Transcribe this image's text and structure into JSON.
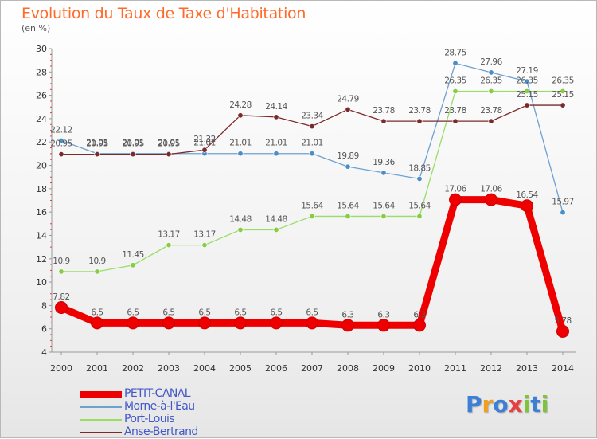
{
  "title": "Evolution du Taux de Taxe d'Habitation",
  "unit_label": "(en %)",
  "logo": {
    "text": "Proxiti",
    "letters": [
      "P",
      "r",
      "o",
      "x",
      "i",
      "t",
      "i"
    ],
    "colors": [
      "#3b7fd6",
      "#f0a020",
      "#3b7fd6",
      "#e84040",
      "#7cc43c",
      "#3b7fd6",
      "#7cc43c"
    ]
  },
  "chart_data": {
    "type": "line",
    "title": "Evolution du Taux de Taxe d'Habitation",
    "ylabel": "(en %)",
    "xlabel": "",
    "ylim": [
      4,
      30
    ],
    "yticks": [
      4,
      6,
      8,
      10,
      12,
      14,
      16,
      18,
      20,
      22,
      24,
      26,
      28,
      30
    ],
    "grid": false,
    "legend_position": "bottom-left",
    "categories": [
      "2000",
      "2001",
      "2002",
      "2003",
      "2004",
      "2005",
      "2006",
      "2007",
      "2008",
      "2009",
      "2010",
      "2011",
      "2012",
      "2013",
      "2014"
    ],
    "series": [
      {
        "name": "PETIT-CANAL",
        "color": "#ee0000",
        "emphasis": true,
        "values": [
          7.82,
          6.5,
          6.5,
          6.5,
          6.5,
          6.5,
          6.5,
          6.5,
          6.3,
          6.3,
          6.3,
          17.06,
          17.06,
          16.54,
          5.78
        ],
        "labels": [
          "7.82",
          "6.5",
          "6.5",
          "6.5",
          "6.5",
          "6.5",
          "6.5",
          "6.5",
          "6.3",
          "6.3",
          "6.3",
          "17.06",
          "17.06",
          "16.54",
          "5.78"
        ]
      },
      {
        "name": "Morne-à-l'Eau",
        "color": "#6ea0d0",
        "values": [
          22.12,
          21.01,
          21.01,
          21.01,
          21.01,
          21.01,
          21.01,
          21.01,
          19.89,
          19.36,
          18.85,
          28.75,
          27.96,
          27.19,
          15.97
        ],
        "labels": [
          "22.12",
          "21.01",
          "21.01",
          "21.01",
          "21.01",
          "21.01",
          "21.01",
          "21.01",
          "19.89",
          "19.36",
          "18.85",
          "28.75",
          "27.96",
          "27.19",
          "15.97"
        ]
      },
      {
        "name": "Port-Louis",
        "color": "#99dd66",
        "values": [
          10.9,
          10.9,
          11.45,
          13.17,
          13.17,
          14.48,
          14.48,
          15.64,
          15.64,
          15.64,
          15.64,
          26.35,
          26.35,
          26.35,
          26.35
        ],
        "labels": [
          "10.9",
          "10.9",
          "11.45",
          "13.17",
          "13.17",
          "14.48",
          "14.48",
          "15.64",
          "15.64",
          "15.64",
          "15.64",
          "26.35",
          "26.35",
          "26.35",
          "26.35"
        ]
      },
      {
        "name": "Anse-Bertrand",
        "color": "#7a2a2a",
        "values": [
          20.95,
          20.95,
          20.95,
          20.95,
          21.32,
          24.28,
          24.14,
          23.34,
          24.79,
          23.78,
          23.78,
          23.78,
          23.78,
          25.15,
          25.15
        ],
        "labels": [
          "20.95",
          "20.95",
          "20.95",
          "20.95",
          "21.32",
          "24.28",
          "24.14",
          "23.34",
          "24.79",
          "23.78",
          "23.78",
          "23.78",
          "23.78",
          "25.15",
          "25.15"
        ]
      }
    ]
  }
}
